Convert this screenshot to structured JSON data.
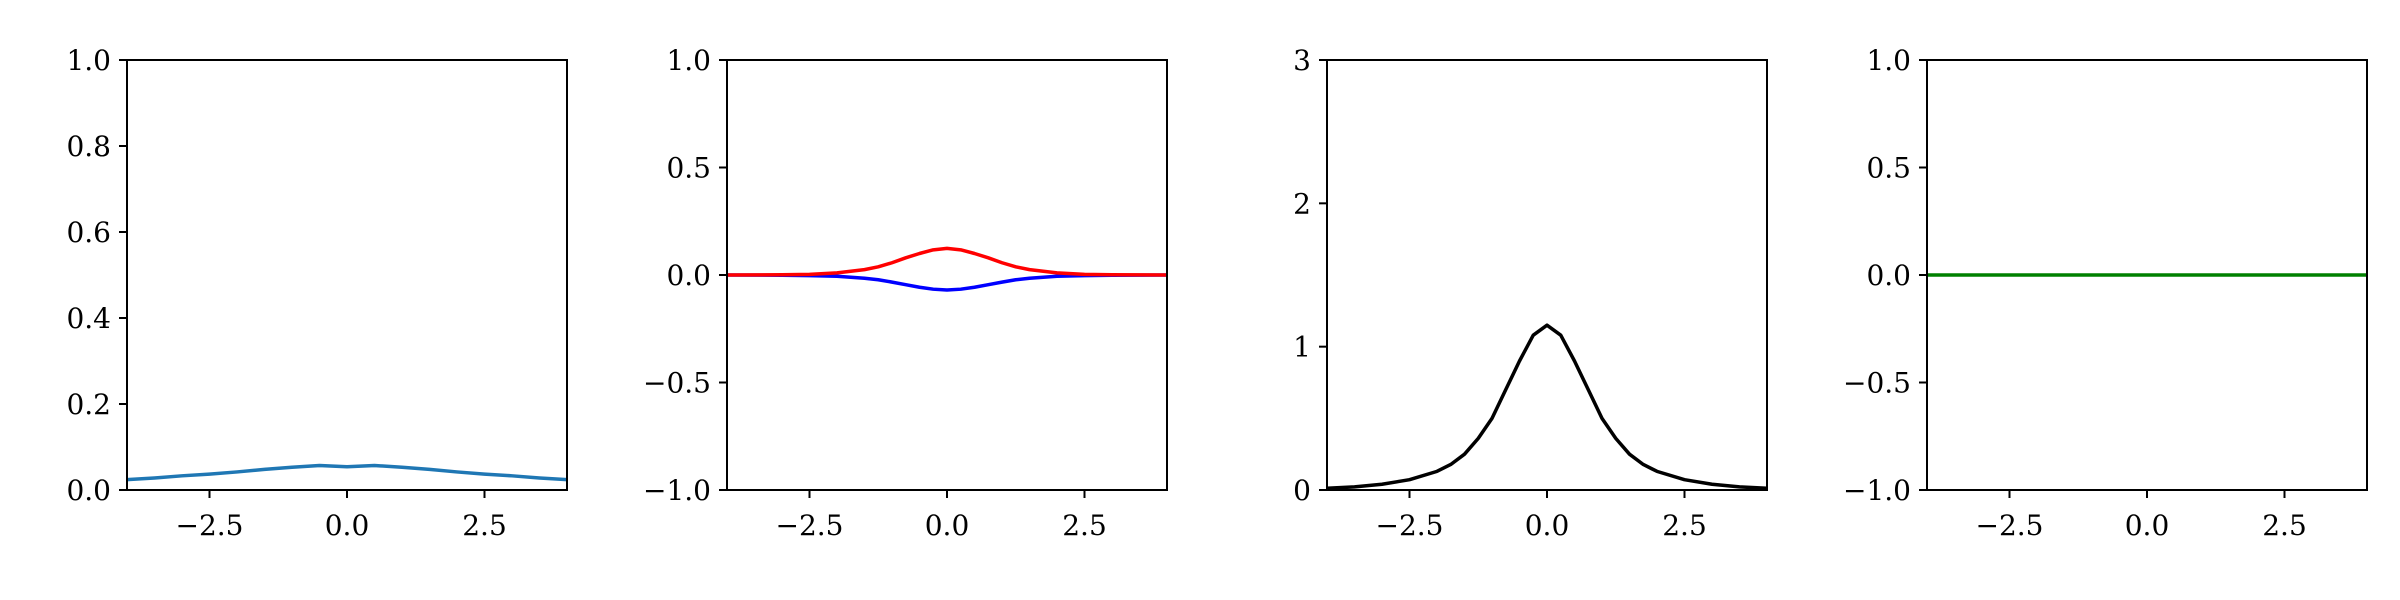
{
  "chart_data": [
    {
      "type": "line",
      "xlim": [
        -4,
        4
      ],
      "ylim": [
        0,
        1
      ],
      "xticks": [
        -2.5,
        0.0,
        2.5
      ],
      "xtick_labels": [
        "−2.5",
        "0.0",
        "2.5"
      ],
      "yticks": [
        0,
        0.2,
        0.4,
        0.6,
        0.8,
        1.0
      ],
      "ytick_labels": [
        "0.0",
        "0.2",
        "0.4",
        "0.6",
        "0.8",
        "1.0"
      ],
      "grid": false,
      "series": [
        {
          "color": "#1f77b4",
          "x": [
            -4,
            -3.5,
            -3,
            -2.5,
            -2,
            -1.5,
            -1,
            -0.5,
            0,
            0.5,
            1,
            1.5,
            2,
            2.5,
            3,
            3.5,
            4
          ],
          "y": [
            0.024,
            0.028,
            0.033,
            0.037,
            0.042,
            0.048,
            0.053,
            0.057,
            0.054,
            0.057,
            0.053,
            0.048,
            0.042,
            0.037,
            0.033,
            0.028,
            0.024
          ]
        }
      ]
    },
    {
      "type": "line",
      "xlim": [
        -4,
        4
      ],
      "ylim": [
        -1,
        1
      ],
      "xticks": [
        -2.5,
        0.0,
        2.5
      ],
      "xtick_labels": [
        "−2.5",
        "0.0",
        "2.5"
      ],
      "yticks": [
        -1,
        -0.5,
        0,
        0.5,
        1
      ],
      "ytick_labels": [
        "−1.0",
        "−0.5",
        "0.0",
        "0.5",
        "1.0"
      ],
      "grid": false,
      "series": [
        {
          "color": "#0000ff",
          "x": [
            -4,
            -3,
            -2.5,
            -2,
            -1.5,
            -1.25,
            -1,
            -0.75,
            -0.5,
            -0.25,
            0,
            0.25,
            0.5,
            0.75,
            1,
            1.25,
            1.5,
            2,
            2.5,
            3,
            4
          ],
          "y": [
            0,
            -0.001,
            -0.003,
            -0.006,
            -0.015,
            -0.022,
            -0.033,
            -0.045,
            -0.057,
            -0.066,
            -0.07,
            -0.066,
            -0.057,
            -0.045,
            -0.033,
            -0.022,
            -0.015,
            -0.006,
            -0.003,
            -0.001,
            0
          ]
        },
        {
          "color": "#ff0000",
          "x": [
            -4,
            -3,
            -2.5,
            -2,
            -1.5,
            -1.25,
            -1,
            -0.75,
            -0.5,
            -0.25,
            0,
            0.25,
            0.5,
            0.75,
            1,
            1.25,
            1.5,
            2,
            2.5,
            3,
            4
          ],
          "y": [
            0,
            0.001,
            0.003,
            0.01,
            0.025,
            0.038,
            0.057,
            0.08,
            0.1,
            0.117,
            0.124,
            0.117,
            0.1,
            0.08,
            0.057,
            0.038,
            0.025,
            0.01,
            0.003,
            0.001,
            0
          ]
        }
      ]
    },
    {
      "type": "line",
      "xlim": [
        -4,
        4
      ],
      "ylim": [
        0,
        3
      ],
      "xticks": [
        -2.5,
        0.0,
        2.5
      ],
      "xtick_labels": [
        "−2.5",
        "0.0",
        "2.5"
      ],
      "yticks": [
        0,
        1,
        2,
        3
      ],
      "ytick_labels": [
        "0",
        "1",
        "2",
        "3"
      ],
      "grid": false,
      "series": [
        {
          "color": "#000000",
          "x": [
            -4,
            -3.5,
            -3,
            -2.5,
            -2,
            -1.75,
            -1.5,
            -1.25,
            -1,
            -0.75,
            -0.5,
            -0.25,
            0,
            0.25,
            0.5,
            0.75,
            1,
            1.25,
            1.5,
            1.75,
            2,
            2.5,
            3,
            3.5,
            4
          ],
          "y": [
            0.012,
            0.022,
            0.04,
            0.072,
            0.13,
            0.178,
            0.25,
            0.36,
            0.5,
            0.7,
            0.9,
            1.08,
            1.15,
            1.08,
            0.9,
            0.7,
            0.5,
            0.36,
            0.25,
            0.178,
            0.13,
            0.072,
            0.04,
            0.022,
            0.012
          ]
        }
      ]
    },
    {
      "type": "line",
      "xlim": [
        -4,
        4
      ],
      "ylim": [
        -1,
        1
      ],
      "xticks": [
        -2.5,
        0.0,
        2.5
      ],
      "xtick_labels": [
        "−2.5",
        "0.0",
        "2.5"
      ],
      "yticks": [
        -1,
        -0.5,
        0,
        0.5,
        1
      ],
      "ytick_labels": [
        "−1.0",
        "−0.5",
        "0.0",
        "0.5",
        "1.0"
      ],
      "grid": false,
      "series": [
        {
          "color": "#008000",
          "x": [
            -4,
            4
          ],
          "y": [
            0,
            0
          ]
        }
      ]
    }
  ]
}
